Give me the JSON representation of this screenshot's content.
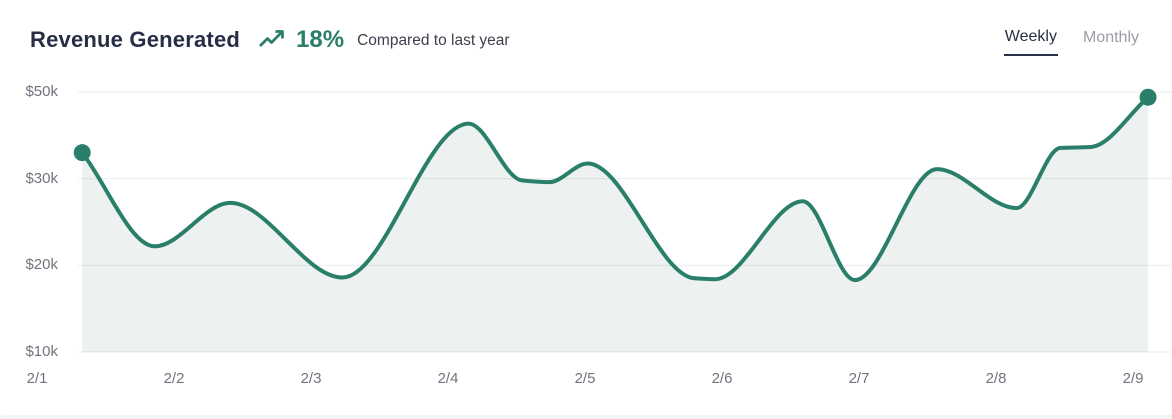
{
  "header": {
    "title": "Revenue Generated",
    "trend_icon": "trending-up-icon",
    "trend_value": "18%",
    "trend_caption": "Compared to last year"
  },
  "tabs": [
    {
      "label": "Weekly",
      "active": true
    },
    {
      "label": "Monthly",
      "active": false
    }
  ],
  "colors": {
    "accent": "#2a7f6a",
    "area_fill": "#edf2f0",
    "gridline": "rgba(33,41,52,0.09)",
    "title_text": "#272e46",
    "axis_text": "#70747e",
    "inactive_tab": "#9a9ca6"
  },
  "chart_data": {
    "type": "area",
    "title": "Revenue Generated",
    "subtitle": "18% Compared to last year",
    "unit": "USD thousands",
    "grid": "horizontal",
    "legend": "none",
    "ylim": [
      10,
      50
    ],
    "y_axis_note": "ticks equally spaced (non-linear value scale)",
    "y_ticks": [
      {
        "label": "$10k",
        "value": 10
      },
      {
        "label": "$20k",
        "value": 20
      },
      {
        "label": "$30k",
        "value": 30
      },
      {
        "label": "$50k",
        "value": 50
      }
    ],
    "x_tick_labels": [
      "2/1",
      "2/2",
      "2/3",
      "2/4",
      "2/5",
      "2/6",
      "2/7",
      "2/8",
      "2/9"
    ],
    "endpoint_markers": true,
    "points": [
      {
        "day": 1.33,
        "value": 36.0
      },
      {
        "day": 1.86,
        "value": 22.2
      },
      {
        "day": 2.41,
        "value": 27.2
      },
      {
        "day": 3.23,
        "value": 18.6
      },
      {
        "day": 4.15,
        "value": 42.7
      },
      {
        "day": 4.54,
        "value": 29.8
      },
      {
        "day": 4.74,
        "value": 29.6
      },
      {
        "day": 5.02,
        "value": 33.5
      },
      {
        "day": 5.8,
        "value": 18.5
      },
      {
        "day": 5.95,
        "value": 18.4
      },
      {
        "day": 6.59,
        "value": 27.4
      },
      {
        "day": 6.97,
        "value": 18.3
      },
      {
        "day": 7.57,
        "value": 32.2
      },
      {
        "day": 8.15,
        "value": 26.6
      },
      {
        "day": 8.47,
        "value": 37.1
      },
      {
        "day": 8.69,
        "value": 37.3
      },
      {
        "day": 9.11,
        "value": 48.8
      }
    ]
  }
}
